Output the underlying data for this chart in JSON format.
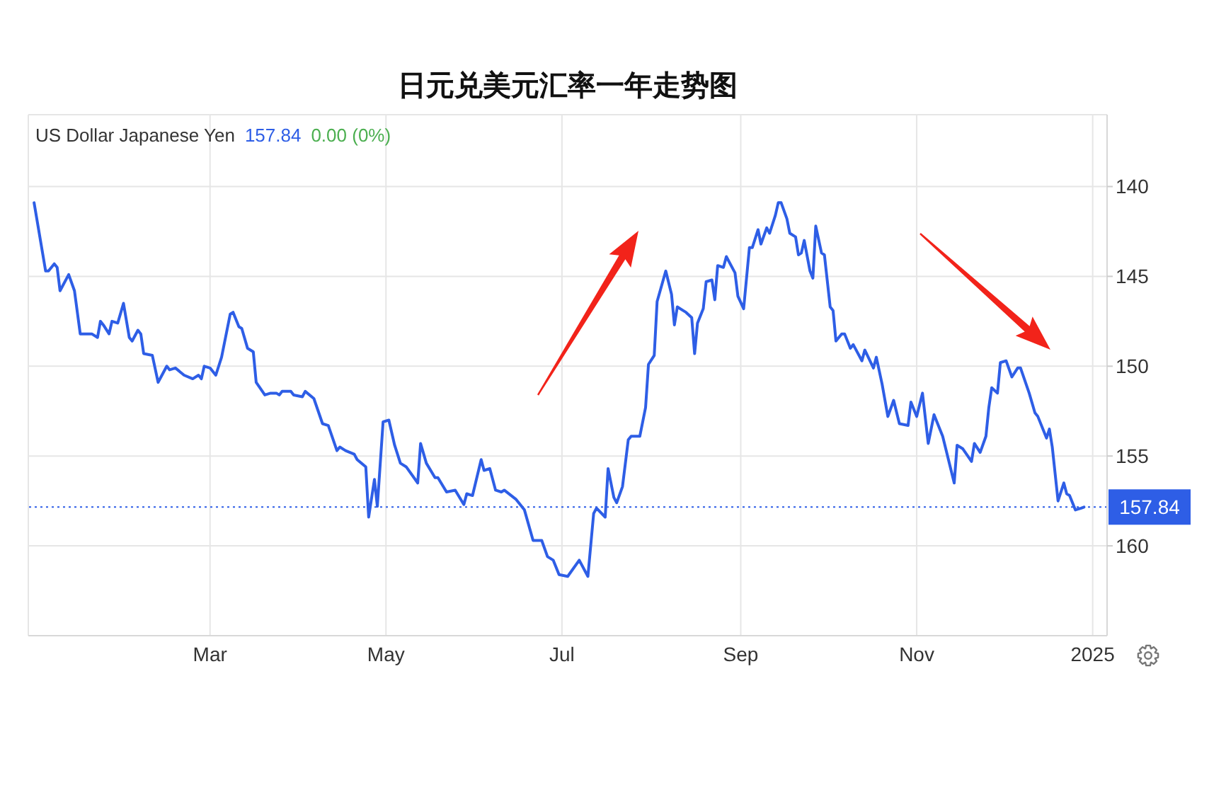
{
  "chart_data": {
    "type": "line",
    "title": "日元兑美元汇率一年走势图",
    "subtitle": "US Dollar Japanese Yen",
    "annotations": [
      "157.84",
      "0.00 (0%)"
    ],
    "x": [
      "2023-12-31",
      "2024-01-04",
      "2024-01-05",
      "2024-01-07",
      "2024-01-08",
      "2024-01-09",
      "2024-01-12",
      "2024-01-14",
      "2024-01-16",
      "2024-01-20",
      "2024-01-22",
      "2024-01-23",
      "2024-01-24",
      "2024-01-26",
      "2024-01-27",
      "2024-01-29",
      "2024-01-31",
      "2024-02-02",
      "2024-02-03",
      "2024-02-05",
      "2024-02-06",
      "2024-02-07",
      "2024-02-10",
      "2024-02-12",
      "2024-02-13",
      "2024-02-15",
      "2024-02-16",
      "2024-02-18",
      "2024-02-21",
      "2024-02-24",
      "2024-02-26",
      "2024-02-27",
      "2024-02-28",
      "2024-03-01",
      "2024-03-03",
      "2024-03-05",
      "2024-03-08",
      "2024-03-09",
      "2024-03-11",
      "2024-03-12",
      "2024-03-14",
      "2024-03-16",
      "2024-03-17",
      "2024-03-20",
      "2024-03-22",
      "2024-03-24",
      "2024-03-25",
      "2024-03-26",
      "2024-03-29",
      "2024-03-30",
      "2024-04-02",
      "2024-04-03",
      "2024-04-06",
      "2024-04-09",
      "2024-04-11",
      "2024-04-14",
      "2024-04-15",
      "2024-04-17",
      "2024-04-20",
      "2024-04-21",
      "2024-04-24",
      "2024-04-25",
      "2024-04-27",
      "2024-04-28",
      "2024-04-30",
      "2024-05-02",
      "2024-05-04",
      "2024-05-06",
      "2024-05-08",
      "2024-05-12",
      "2024-05-13",
      "2024-05-15",
      "2024-05-18",
      "2024-05-19",
      "2024-05-22",
      "2024-05-25",
      "2024-05-28",
      "2024-05-29",
      "2024-05-31",
      "2024-06-03",
      "2024-06-04",
      "2024-06-06",
      "2024-06-08",
      "2024-06-10",
      "2024-06-11",
      "2024-06-15",
      "2024-06-18",
      "2024-06-21",
      "2024-06-24",
      "2024-06-26",
      "2024-06-28",
      "2024-06-30",
      "2024-07-03",
      "2024-07-07",
      "2024-07-10",
      "2024-07-12",
      "2024-07-13",
      "2024-07-16",
      "2024-07-17",
      "2024-07-19",
      "2024-07-20",
      "2024-07-22",
      "2024-07-24",
      "2024-07-25",
      "2024-07-28",
      "2024-07-30",
      "2024-07-31",
      "2024-08-02",
      "2024-08-03",
      "2024-08-06",
      "2024-08-08",
      "2024-08-09",
      "2024-08-10",
      "2024-08-12",
      "2024-08-13",
      "2024-08-15",
      "2024-08-16",
      "2024-08-17",
      "2024-08-19",
      "2024-08-20",
      "2024-08-22",
      "2024-08-23",
      "2024-08-24",
      "2024-08-26",
      "2024-08-27",
      "2024-08-30",
      "2024-08-31",
      "2024-09-02",
      "2024-09-04",
      "2024-09-05",
      "2024-09-07",
      "2024-09-08",
      "2024-09-10",
      "2024-09-11",
      "2024-09-13",
      "2024-09-14",
      "2024-09-15",
      "2024-09-17",
      "2024-09-18",
      "2024-09-20",
      "2024-09-21",
      "2024-09-22",
      "2024-09-23",
      "2024-09-25",
      "2024-09-26",
      "2024-09-27",
      "2024-09-29",
      "2024-09-30",
      "2024-10-02",
      "2024-10-03",
      "2024-10-04",
      "2024-10-06",
      "2024-10-07",
      "2024-10-09",
      "2024-10-10",
      "2024-10-13",
      "2024-10-14",
      "2024-10-17",
      "2024-10-18",
      "2024-10-20",
      "2024-10-22",
      "2024-10-24",
      "2024-10-26",
      "2024-10-29",
      "2024-10-30",
      "2024-11-01",
      "2024-11-03",
      "2024-11-05",
      "2024-11-07",
      "2024-11-10",
      "2024-11-14",
      "2024-11-15",
      "2024-11-17",
      "2024-11-20",
      "2024-11-21",
      "2024-11-23",
      "2024-11-25",
      "2024-11-26",
      "2024-11-27",
      "2024-11-29",
      "2024-11-30",
      "2024-12-02",
      "2024-12-04",
      "2024-12-06",
      "2024-12-07",
      "2024-12-10",
      "2024-12-12",
      "2024-12-13",
      "2024-12-16",
      "2024-12-17",
      "2024-12-18",
      "2024-12-20",
      "2024-12-22",
      "2024-12-23",
      "2024-12-24",
      "2024-12-26",
      "2024-12-28",
      "2024-12-29"
    ],
    "series": [
      {
        "color": "#2e5ee6",
        "values": [
          140.9,
          144.7,
          144.7,
          144.3,
          144.5,
          145.8,
          144.9,
          145.8,
          148.2,
          148.2,
          148.4,
          147.5,
          147.7,
          148.2,
          147.5,
          147.6,
          146.5,
          148.4,
          148.6,
          148.0,
          148.2,
          149.3,
          149.4,
          150.9,
          150.6,
          150.0,
          150.2,
          150.1,
          150.5,
          150.7,
          150.5,
          150.7,
          150.0,
          150.1,
          150.5,
          149.5,
          147.1,
          147.0,
          147.8,
          147.9,
          149.0,
          149.2,
          150.9,
          151.6,
          151.5,
          151.5,
          151.6,
          151.4,
          151.4,
          151.6,
          151.7,
          151.4,
          151.8,
          153.2,
          153.3,
          154.7,
          154.5,
          154.7,
          154.9,
          155.2,
          155.6,
          158.4,
          156.3,
          157.8,
          153.1,
          153.0,
          154.4,
          155.4,
          155.6,
          156.5,
          154.3,
          155.4,
          156.2,
          156.2,
          157.0,
          156.9,
          157.7,
          157.1,
          157.2,
          155.2,
          155.8,
          155.7,
          156.9,
          157.0,
          156.9,
          157.4,
          158.0,
          159.7,
          159.7,
          160.6,
          160.8,
          161.6,
          161.7,
          160.8,
          161.7,
          158.2,
          157.9,
          158.4,
          155.7,
          157.3,
          157.6,
          156.7,
          154.1,
          153.9,
          153.9,
          152.3,
          149.9,
          149.4,
          146.4,
          144.7,
          146.0,
          147.7,
          146.7,
          146.9,
          147.0,
          147.3,
          149.3,
          147.6,
          146.8,
          145.3,
          145.2,
          146.3,
          144.4,
          144.5,
          143.9,
          144.8,
          146.1,
          146.8,
          143.4,
          143.4,
          142.4,
          143.2,
          142.3,
          142.6,
          141.6,
          140.9,
          140.9,
          141.8,
          142.6,
          142.8,
          143.8,
          143.7,
          143.0,
          144.7,
          145.1,
          142.2,
          143.7,
          143.8,
          146.7,
          146.9,
          148.6,
          148.2,
          148.2,
          149.0,
          148.8,
          149.7,
          149.1,
          150.1,
          149.5,
          151.0,
          152.8,
          151.9,
          153.2,
          153.3,
          152.0,
          152.8,
          151.5,
          154.3,
          152.7,
          153.9,
          156.5,
          154.4,
          154.6,
          155.3,
          154.3,
          154.8,
          153.9,
          152.3,
          151.2,
          151.5,
          149.8,
          149.7,
          150.6,
          150.1,
          150.1,
          151.5,
          152.6,
          152.8,
          154.0,
          153.5,
          154.5,
          157.5,
          156.5,
          157.1,
          157.2,
          158.0,
          157.9,
          157.84
        ]
      }
    ],
    "xlim": [
      "2023-12-29",
      "2025-01-06"
    ],
    "xticks": [
      {
        "value": "2024-03-01",
        "label": "Mar"
      },
      {
        "value": "2024-05-01",
        "label": "May"
      },
      {
        "value": "2024-07-01",
        "label": "Jul"
      },
      {
        "value": "2024-09-01",
        "label": "Sep"
      },
      {
        "value": "2024-11-01",
        "label": "Nov"
      },
      {
        "value": "2025-01-01",
        "label": "2025"
      }
    ],
    "ylim": [
      165,
      136
    ],
    "yticks": [
      140,
      145,
      150,
      155,
      160
    ],
    "ref_lines": [
      {
        "axis": "y",
        "value": 157.84,
        "label": "157.84",
        "color": "#2e5ee6",
        "line_style": "dotted"
      }
    ],
    "grid": true
  }
}
